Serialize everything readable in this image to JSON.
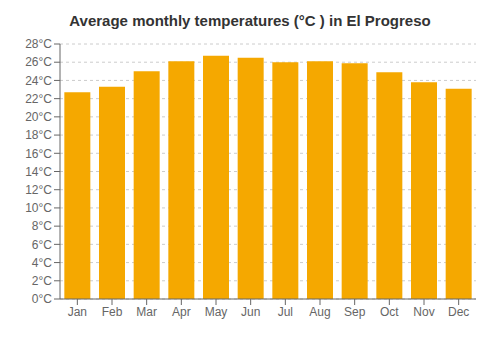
{
  "chart_data": {
    "type": "bar",
    "title": "Average monthly temperatures (°C ) in El Progreso",
    "categories": [
      "Jan",
      "Feb",
      "Mar",
      "Apr",
      "May",
      "Jun",
      "Jul",
      "Aug",
      "Sep",
      "Oct",
      "Nov",
      "Dec"
    ],
    "values": [
      22.7,
      23.3,
      25.0,
      26.1,
      26.7,
      26.5,
      26.0,
      26.1,
      25.9,
      24.9,
      23.8,
      23.1
    ],
    "color": "#F5A800",
    "ylim": [
      0,
      28
    ],
    "yticks": [
      {
        "value": 0,
        "label": "0°C"
      },
      {
        "value": 2,
        "label": "2°C"
      },
      {
        "value": 4,
        "label": "4°C"
      },
      {
        "value": 6,
        "label": "6°C"
      },
      {
        "value": 8,
        "label": "8°C"
      },
      {
        "value": 10,
        "label": "10°C"
      },
      {
        "value": 12,
        "label": "12°C"
      },
      {
        "value": 14,
        "label": "14°C"
      },
      {
        "value": 16,
        "label": "16°C"
      },
      {
        "value": 18,
        "label": "18°C"
      },
      {
        "value": 20,
        "label": "20°C"
      },
      {
        "value": 22,
        "label": "22°C"
      },
      {
        "value": 24,
        "label": "24°C"
      },
      {
        "value": 26,
        "label": "26°C"
      },
      {
        "value": 28,
        "label": "28°C"
      }
    ],
    "grid": true
  }
}
